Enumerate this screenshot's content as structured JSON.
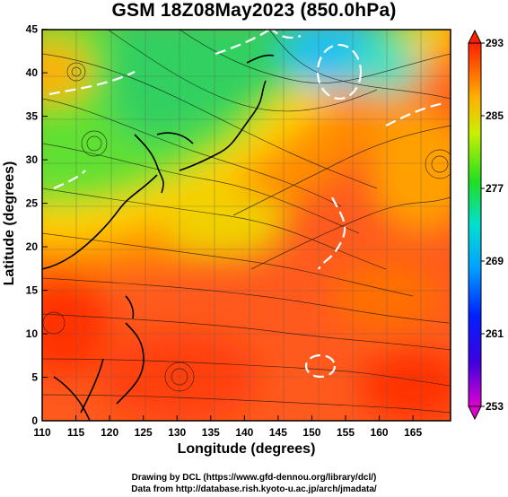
{
  "title": "GSM 18Z08May2023 (850.0hPa)",
  "axes": {
    "xlabel": "Longitude (degrees)",
    "ylabel": "Latitude (degrees)",
    "xticks": [
      "110",
      "115",
      "120",
      "125",
      "130",
      "135",
      "140",
      "145",
      "150",
      "155",
      "160",
      "165"
    ],
    "yticks": [
      "0",
      "5",
      "10",
      "15",
      "20",
      "25",
      "30",
      "35",
      "40",
      "45"
    ]
  },
  "colorbar": {
    "labels": [
      "293",
      "285",
      "277",
      "269",
      "261",
      "253"
    ]
  },
  "credits": {
    "line1": "Drawing by DCL (https://www.gfd-dennou.org/library/dcl/)",
    "line2": "Data from http://database.rish.kyoto-u.ac.jp/arch/jmadata/"
  },
  "chart_data": {
    "type": "heatmap",
    "title": "GSM 18Z08May2023 (850.0hPa)",
    "xlabel": "Longitude (degrees)",
    "ylabel": "Latitude (degrees)",
    "xlim": [
      110,
      170
    ],
    "ylim": [
      0,
      50
    ],
    "color_range": [
      253,
      293
    ],
    "colorbar_ticks": [
      253,
      261,
      269,
      277,
      285,
      293
    ],
    "grid": true
  }
}
